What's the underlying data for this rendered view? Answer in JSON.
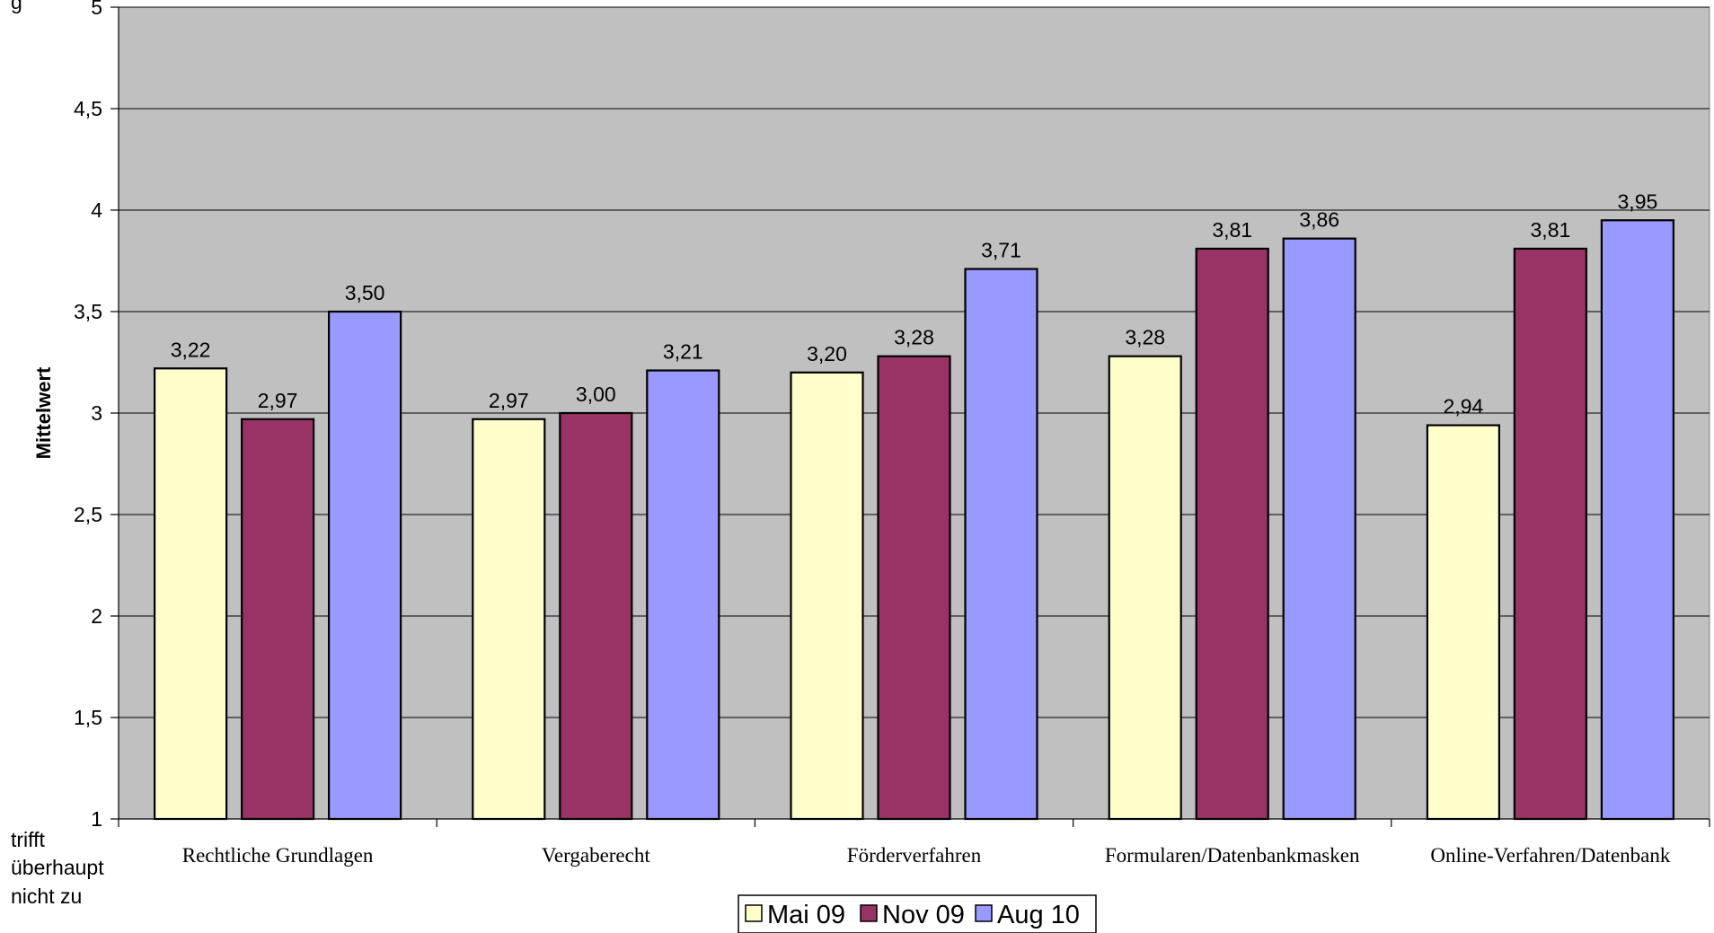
{
  "chart_data": {
    "type": "bar",
    "categories": [
      "Rechtliche Grundlagen",
      "Vergaberecht",
      "Förderverfahren",
      "Formularen/Datenbankmasken",
      "Online-Verfahren/Datenbank"
    ],
    "series": [
      {
        "name": "Mai 09",
        "color": "#FFFFCC",
        "values": [
          3.22,
          2.97,
          3.2,
          3.28,
          2.94
        ],
        "labels": [
          "3,22",
          "2,97",
          "3,20",
          "3,28",
          "2,94"
        ]
      },
      {
        "name": "Nov 09",
        "color": "#993366",
        "values": [
          2.97,
          3.0,
          3.28,
          3.81,
          3.81
        ],
        "labels": [
          "2,97",
          "3,00",
          "3,28",
          "3,81",
          "3,81"
        ]
      },
      {
        "name": "Aug 10",
        "color": "#9999FF",
        "values": [
          3.5,
          3.21,
          3.71,
          3.86,
          3.95
        ],
        "labels": [
          "3,50",
          "3,21",
          "3,71",
          "3,86",
          "3,95"
        ]
      }
    ],
    "ylabel": "Mittelwert",
    "ylim": [
      1,
      5
    ],
    "yticks": [
      {
        "value": 1,
        "label": "1"
      },
      {
        "value": 1.5,
        "label": "1,5"
      },
      {
        "value": 2,
        "label": "2"
      },
      {
        "value": 2.5,
        "label": "2,5"
      },
      {
        "value": 3,
        "label": "3"
      },
      {
        "value": 3.5,
        "label": "3,5"
      },
      {
        "value": 4,
        "label": "4"
      },
      {
        "value": 4.5,
        "label": "4,5"
      },
      {
        "value": 5,
        "label": "5"
      }
    ],
    "y_bottom_annotation": [
      "trifft",
      "überhaupt",
      "nicht zu"
    ],
    "top_left_fragment": "g",
    "plot_background": "#C0C0C0",
    "grid": true,
    "legend_position": "bottom"
  }
}
